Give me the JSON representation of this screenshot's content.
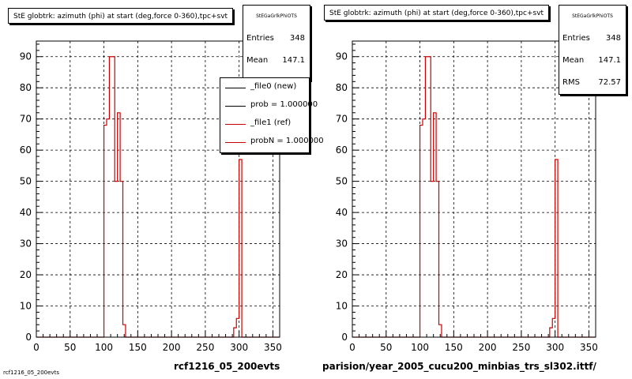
{
  "footer_text": "rcf1216_05_200evts",
  "chart_data": [
    {
      "type": "bar",
      "title": "StE globtrk: azimuth (phi) at start (deg,force 0-360),tpc+svt",
      "stats": {
        "name": "StEGaGrlkPhiOTS",
        "entries_label": "Entries",
        "entries": "348",
        "mean_label": "Mean",
        "mean": "147.1"
      },
      "legend": [
        {
          "label": "_file0 (new)",
          "color": "#000000"
        },
        {
          "label": "prob = 1.000000",
          "color": "#000000"
        },
        {
          "label": "_file1 (ref)",
          "color": "#cc0000"
        },
        {
          "label": "probN = 1.000000",
          "color": "#cc0000"
        }
      ],
      "caption": "rcf1216_05_200evts",
      "xlim": [
        0,
        360
      ],
      "ylim": [
        0,
        95
      ],
      "xticks": [
        "0",
        "50",
        "100",
        "150",
        "200",
        "250",
        "300",
        "350"
      ],
      "yticks": [
        "0",
        "10",
        "20",
        "30",
        "40",
        "50",
        "60",
        "70",
        "80",
        "90"
      ],
      "bin_edges": [
        0,
        100,
        104,
        108,
        116,
        120,
        124,
        128,
        132,
        292,
        296,
        300,
        304,
        360
      ],
      "series": [
        {
          "values": [
            0,
            68,
            70,
            90,
            50,
            72,
            50,
            4,
            0,
            3,
            6,
            57,
            0
          ],
          "color": "#cc0000"
        }
      ]
    },
    {
      "type": "bar",
      "title": "StE globtrk: azimuth (phi) at start (deg,force 0-360),tpc+svt",
      "stats": {
        "name": "StEGaGrlkPhiOTS",
        "entries_label": "Entries",
        "entries": "348",
        "mean_label": "Mean",
        "mean": "147.1",
        "rms_label": "RMS",
        "rms": "72.57"
      },
      "caption": "parision/year_2005_cucu200_minbias_trs_sl302.ittf/",
      "xlim": [
        0,
        360
      ],
      "ylim": [
        0,
        95
      ],
      "xticks": [
        "0",
        "50",
        "100",
        "150",
        "200",
        "250",
        "300",
        "350"
      ],
      "yticks": [
        "0",
        "10",
        "20",
        "30",
        "40",
        "50",
        "60",
        "70",
        "80",
        "90"
      ],
      "bin_edges": [
        0,
        100,
        104,
        108,
        116,
        120,
        124,
        128,
        132,
        292,
        296,
        300,
        304,
        360
      ],
      "series": [
        {
          "values": [
            0,
            68,
            70,
            90,
            50,
            72,
            50,
            4,
            0,
            3,
            6,
            57,
            0
          ],
          "color": "#cc0000"
        }
      ]
    }
  ]
}
